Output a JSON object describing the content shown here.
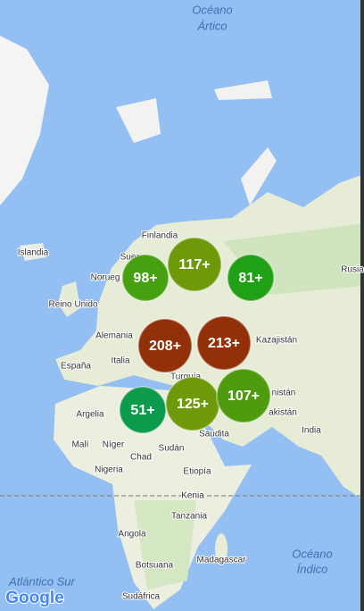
{
  "map": {
    "labels": {
      "arctic_ocean_1": "Océano",
      "arctic_ocean_2": "Ártico",
      "finland": "Finlandia",
      "iceland": "Islandia",
      "sweden": "Suec",
      "norway": "Norueg",
      "uk": "Reino Unido",
      "germany": "Alemania",
      "russia": "Rusia",
      "kazakhstan": "Kazajistán",
      "spain": "España",
      "italy": "Italia",
      "turkey": "Turquía",
      "algeria": "Argelia",
      "saudi": "Saudita",
      "afghanistan": "nistán",
      "pakistan": "akistán",
      "india": "India",
      "mali": "Malí",
      "niger": "Níger",
      "chad": "Chad",
      "sudan": "Sudán",
      "nigeria": "Nigeria",
      "ethiopia": "Etiopía",
      "kenya": "Kenia",
      "tanzania": "Tanzania",
      "angola": "Angola",
      "botswana": "Botsuana",
      "madagascar": "Madagascar",
      "south_africa": "Sudáfrica",
      "indian_ocean_1": "Océano",
      "indian_ocean_2": "Índico",
      "south_atlantic": "Atlántico Sur"
    },
    "logo": "Google",
    "clusters": [
      {
        "label": "117+",
        "color": "#6e9a0a"
      },
      {
        "label": "98+",
        "color": "#46a010"
      },
      {
        "label": "81+",
        "color": "#20a014"
      },
      {
        "label": "208+",
        "color": "#92300a"
      },
      {
        "label": "213+",
        "color": "#92300a"
      },
      {
        "label": "51+",
        "color": "#0c9a4c"
      },
      {
        "label": "125+",
        "color": "#6e9a0a"
      },
      {
        "label": "107+",
        "color": "#4e9c0e"
      }
    ]
  }
}
